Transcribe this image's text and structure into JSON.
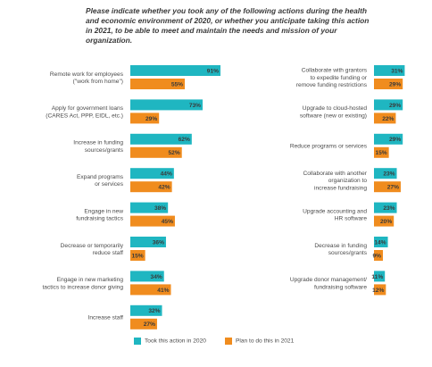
{
  "title_lines": [
    "Please indicate whether you took any of the following actions during the health",
    "and economic environment of 2020, or whether you anticipate taking this action",
    "in 2021, to be able to meet and maintain the needs and mission of your organization."
  ],
  "colors": {
    "took": "#1fb6c1",
    "plan": "#f08c1e"
  },
  "chart_data": [
    {
      "type": "bar",
      "orientation": "horizontal",
      "categories": [
        [
          "Remote work for employees",
          "(\"work from home\")"
        ],
        [
          "Apply for government loans",
          "(CARES Act, PPP, EIDL, etc.)"
        ],
        [
          "Increase in funding",
          "sources/grants"
        ],
        [
          "Expand programs",
          "or services"
        ],
        [
          "Engage in new",
          "fundraising tactics"
        ],
        [
          "Decrease or temporarily",
          "reduce staff"
        ],
        [
          "Engage in new marketing",
          "tactics to increase donor giving"
        ],
        [
          "Increase staff"
        ]
      ],
      "series": [
        {
          "name": "Took this action in 2020",
          "values": [
            91,
            73,
            62,
            44,
            38,
            36,
            34,
            32
          ],
          "labels": [
            "91%",
            "73%",
            "62%",
            "44%",
            "38%",
            "36%",
            "34%",
            "32%"
          ]
        },
        {
          "name": "Plan to do this in 2021",
          "values": [
            55,
            29,
            52,
            42,
            45,
            15,
            41,
            27
          ],
          "labels": [
            "55%",
            "29%",
            "52%",
            "42%",
            "45%",
            "15%",
            "41%",
            "27%"
          ]
        }
      ],
      "unit": "%",
      "xlim": [
        0,
        100
      ]
    },
    {
      "type": "bar",
      "orientation": "horizontal",
      "categories": [
        [
          "Collaborate with grantors",
          "to expedite funding or",
          "remove funding restrictions"
        ],
        [
          "Upgrade to cloud-hosted",
          "software (new or existing)"
        ],
        [
          "Reduce programs or services"
        ],
        [
          "Collaborate with another",
          "organization to",
          "increase fundraising"
        ],
        [
          "Upgrade accounting and",
          "HR software"
        ],
        [
          "Decrease in funding",
          "sources/grants"
        ],
        [
          "Upgrade donor management/",
          "fundraising software"
        ]
      ],
      "series": [
        {
          "name": "Took this action in 2020",
          "values": [
            31,
            29,
            29,
            23,
            23,
            14,
            11
          ],
          "labels": [
            "31%",
            "29%",
            "29%",
            "23%",
            "23%",
            "14%",
            "11%"
          ]
        },
        {
          "name": "Plan to do this in 2021",
          "values": [
            29,
            22,
            15,
            27,
            20,
            9,
            12
          ],
          "labels": [
            "29%",
            "22%",
            "15%",
            "27%",
            "20%",
            "9%",
            "12%"
          ]
        }
      ],
      "unit": "%",
      "xlim": [
        0,
        100
      ]
    }
  ],
  "legend": {
    "placement": "bottom-center",
    "items": [
      {
        "label": "Took this action in 2020"
      },
      {
        "label": "Plan to do this in 2021"
      }
    ]
  }
}
